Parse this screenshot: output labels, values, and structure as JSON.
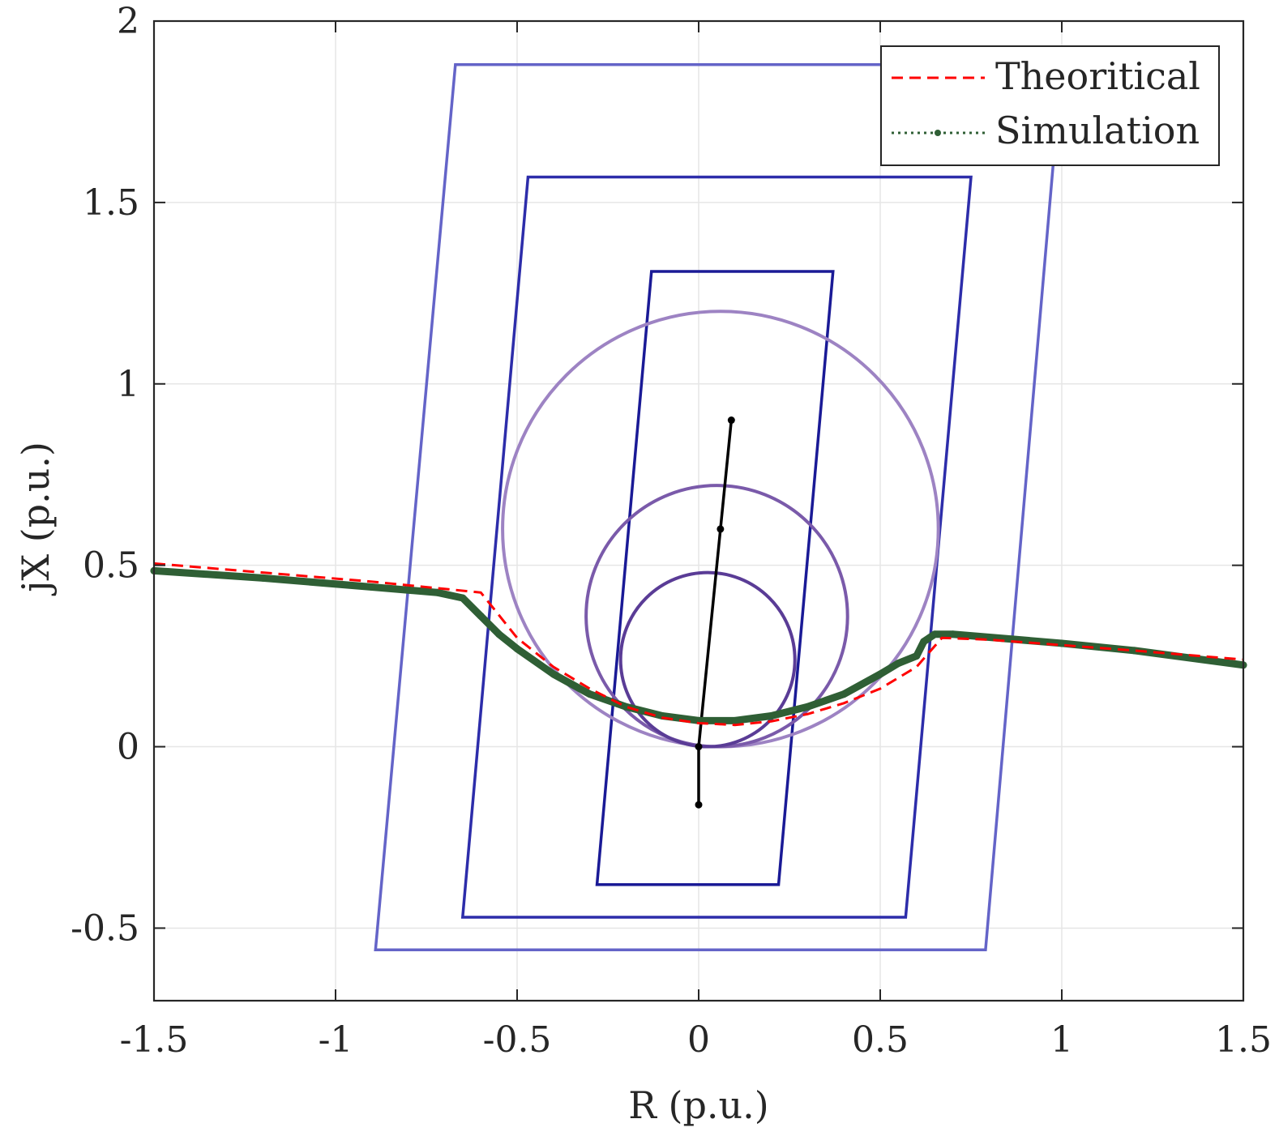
{
  "chart_data": {
    "type": "line",
    "title": "",
    "xlabel": "R (p.u.)",
    "ylabel": "jX (p.u.)",
    "xlim": [
      -1.5,
      1.5
    ],
    "ylim": [
      -0.7,
      2.0
    ],
    "xticks": [
      -1.5,
      -1,
      -0.5,
      0,
      0.5,
      1,
      1.5
    ],
    "xtick_labels": [
      "-1.5",
      "-1",
      "-0.5",
      "0",
      "0.5",
      "1",
      "1.5"
    ],
    "yticks": [
      -0.5,
      0,
      0.5,
      1,
      1.5,
      2
    ],
    "ytick_labels": [
      "-0.5",
      "0",
      "0.5",
      "1",
      "1.5",
      "2"
    ],
    "grid": true,
    "legend_position": "top-right",
    "series": [
      {
        "name": "Theoritical",
        "style": "dashed",
        "color": "#ff0000",
        "x": [
          -1.5,
          -1.2,
          -0.9,
          -0.7,
          -0.6,
          -0.5,
          -0.4,
          -0.3,
          -0.2,
          -0.1,
          0.0,
          0.1,
          0.2,
          0.3,
          0.4,
          0.5,
          0.6,
          0.67,
          0.8,
          1.0,
          1.2,
          1.5
        ],
        "y": [
          0.505,
          0.48,
          0.455,
          0.435,
          0.425,
          0.3,
          0.22,
          0.16,
          0.11,
          0.08,
          0.065,
          0.06,
          0.07,
          0.09,
          0.12,
          0.16,
          0.22,
          0.3,
          0.295,
          0.28,
          0.265,
          0.24
        ]
      },
      {
        "name": "Simulation",
        "style": "dotted",
        "color": "#2f5f35",
        "x": [
          -1.5,
          -1.2,
          -0.9,
          -0.72,
          -0.65,
          -0.6,
          -0.55,
          -0.5,
          -0.4,
          -0.3,
          -0.2,
          -0.1,
          0.0,
          0.1,
          0.2,
          0.3,
          0.4,
          0.5,
          0.55,
          0.6,
          0.62,
          0.65,
          0.7,
          1.0,
          1.2,
          1.5
        ],
        "y": [
          0.485,
          0.465,
          0.44,
          0.425,
          0.41,
          0.36,
          0.31,
          0.27,
          0.2,
          0.145,
          0.11,
          0.085,
          0.072,
          0.072,
          0.085,
          0.11,
          0.145,
          0.2,
          0.23,
          0.25,
          0.29,
          0.31,
          0.31,
          0.285,
          0.265,
          0.225
        ]
      }
    ],
    "zones": {
      "quadrilaterals": [
        {
          "color": "#6464c8",
          "points": [
            [
              -0.67,
              1.88
            ],
            [
              1.0,
              1.88
            ],
            [
              0.79,
              -0.56
            ],
            [
              -0.89,
              -0.56
            ]
          ]
        },
        {
          "color": "#2d2daa",
          "points": [
            [
              -0.47,
              1.57
            ],
            [
              0.75,
              1.57
            ],
            [
              0.57,
              -0.47
            ],
            [
              -0.65,
              -0.47
            ]
          ]
        },
        {
          "color": "#1a1a96",
          "points": [
            [
              -0.13,
              1.31
            ],
            [
              0.37,
              1.31
            ],
            [
              0.22,
              -0.38
            ],
            [
              -0.28,
              -0.38
            ]
          ]
        }
      ],
      "circles": [
        {
          "color": "#9d83c3",
          "center": [
            0.06,
            0.6
          ],
          "radius": 0.6
        },
        {
          "color": "#7a5aaa",
          "center": [
            0.05,
            0.36
          ],
          "radius": 0.36
        },
        {
          "color": "#5a3c96",
          "center": [
            0.025,
            0.24
          ],
          "radius": 0.24
        }
      ],
      "impedance_line": {
        "color": "#000000",
        "points": [
          [
            0.0,
            -0.16
          ],
          [
            0.0,
            0.0
          ],
          [
            0.06,
            0.6
          ],
          [
            0.09,
            0.9
          ]
        ]
      }
    }
  }
}
